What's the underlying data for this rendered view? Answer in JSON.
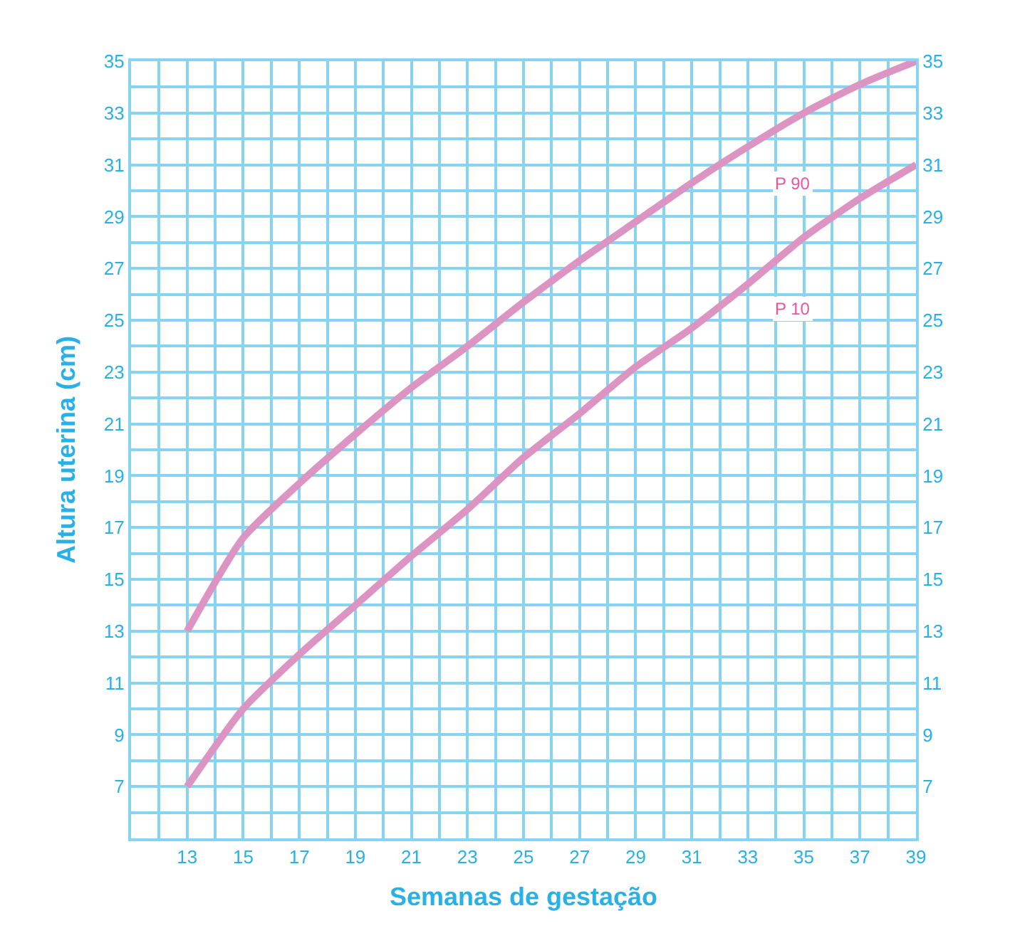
{
  "chart_data": {
    "type": "line",
    "xlabel": "Semanas de gestação",
    "ylabel": "Altura uterina (cm)",
    "x": [
      13,
      15,
      17,
      19,
      21,
      23,
      25,
      27,
      29,
      31,
      33,
      35,
      37,
      39
    ],
    "series": [
      {
        "name": "P 90",
        "color": "#dc94c2",
        "values": [
          13,
          16.6,
          18.7,
          20.6,
          22.4,
          24.0,
          25.7,
          27.3,
          28.8,
          30.3,
          31.7,
          33.0,
          34.1,
          35
        ]
      },
      {
        "name": "P 10",
        "color": "#dc94c2",
        "values": [
          7,
          10.0,
          12.1,
          14.0,
          15.9,
          17.7,
          19.7,
          21.4,
          23.2,
          24.7,
          26.4,
          28.2,
          29.7,
          31
        ]
      }
    ],
    "xlim": [
      11,
      39
    ],
    "xticks": [
      13,
      15,
      17,
      19,
      21,
      23,
      25,
      27,
      29,
      31,
      33,
      35,
      37,
      39
    ],
    "ylim": [
      5,
      35
    ],
    "yticks": [
      7,
      9,
      11,
      13,
      15,
      17,
      19,
      21,
      23,
      25,
      27,
      29,
      31,
      33,
      35
    ],
    "y2lim": [
      5,
      35
    ],
    "y2ticks": [
      7,
      9,
      11,
      13,
      15,
      17,
      19,
      21,
      23,
      25,
      27,
      29,
      31,
      33,
      35
    ],
    "grid": true,
    "marker": "none",
    "line_style": "solid",
    "legend": false
  }
}
